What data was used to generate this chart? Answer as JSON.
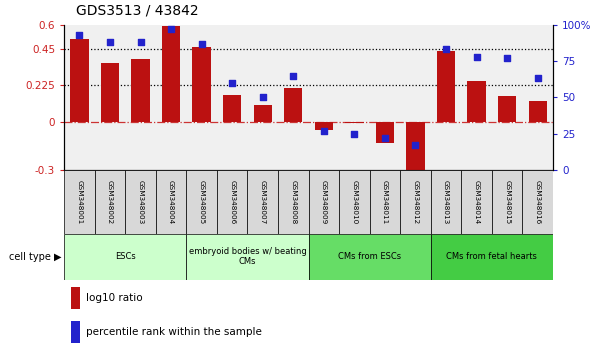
{
  "title": "GDS3513 / 43842",
  "samples": [
    "GSM348001",
    "GSM348002",
    "GSM348003",
    "GSM348004",
    "GSM348005",
    "GSM348006",
    "GSM348007",
    "GSM348008",
    "GSM348009",
    "GSM348010",
    "GSM348011",
    "GSM348012",
    "GSM348013",
    "GSM348014",
    "GSM348015",
    "GSM348016"
  ],
  "log10_ratio": [
    0.51,
    0.36,
    0.39,
    0.59,
    0.46,
    0.165,
    0.1,
    0.21,
    -0.05,
    -0.01,
    -0.13,
    -0.32,
    0.44,
    0.25,
    0.16,
    0.13
  ],
  "percentile_rank": [
    93,
    88,
    88,
    97,
    87,
    60,
    50,
    65,
    27,
    25,
    22,
    17,
    83,
    78,
    77,
    63
  ],
  "bar_color": "#bb1111",
  "dot_color": "#2222cc",
  "cell_types": [
    {
      "label": "ESCs",
      "start": 0,
      "end": 4,
      "color": "#ccffcc"
    },
    {
      "label": "embryoid bodies w/ beating\nCMs",
      "start": 4,
      "end": 8,
      "color": "#ccffcc"
    },
    {
      "label": "CMs from ESCs",
      "start": 8,
      "end": 12,
      "color": "#66dd66"
    },
    {
      "label": "CMs from fetal hearts",
      "start": 12,
      "end": 16,
      "color": "#44cc44"
    }
  ],
  "ylim_left": [
    -0.3,
    0.6
  ],
  "ylim_right": [
    0,
    100
  ],
  "yticks_left": [
    -0.3,
    0.0,
    0.225,
    0.45,
    0.6
  ],
  "ytick_labels_left": [
    "-0.3",
    "0",
    "0.225",
    "0.45",
    "0.6"
  ],
  "yticks_right": [
    0,
    25,
    50,
    75,
    100
  ],
  "ytick_labels_right": [
    "0",
    "25",
    "50",
    "75",
    "100%"
  ],
  "hlines": [
    0.225,
    0.45
  ],
  "plot_bg_color": "#f0f0f0",
  "zero_line_color": "#cc3333",
  "legend_bar_label": "log10 ratio",
  "legend_dot_label": "percentile rank within the sample",
  "fig_width": 6.11,
  "fig_height": 3.54,
  "dpi": 100
}
